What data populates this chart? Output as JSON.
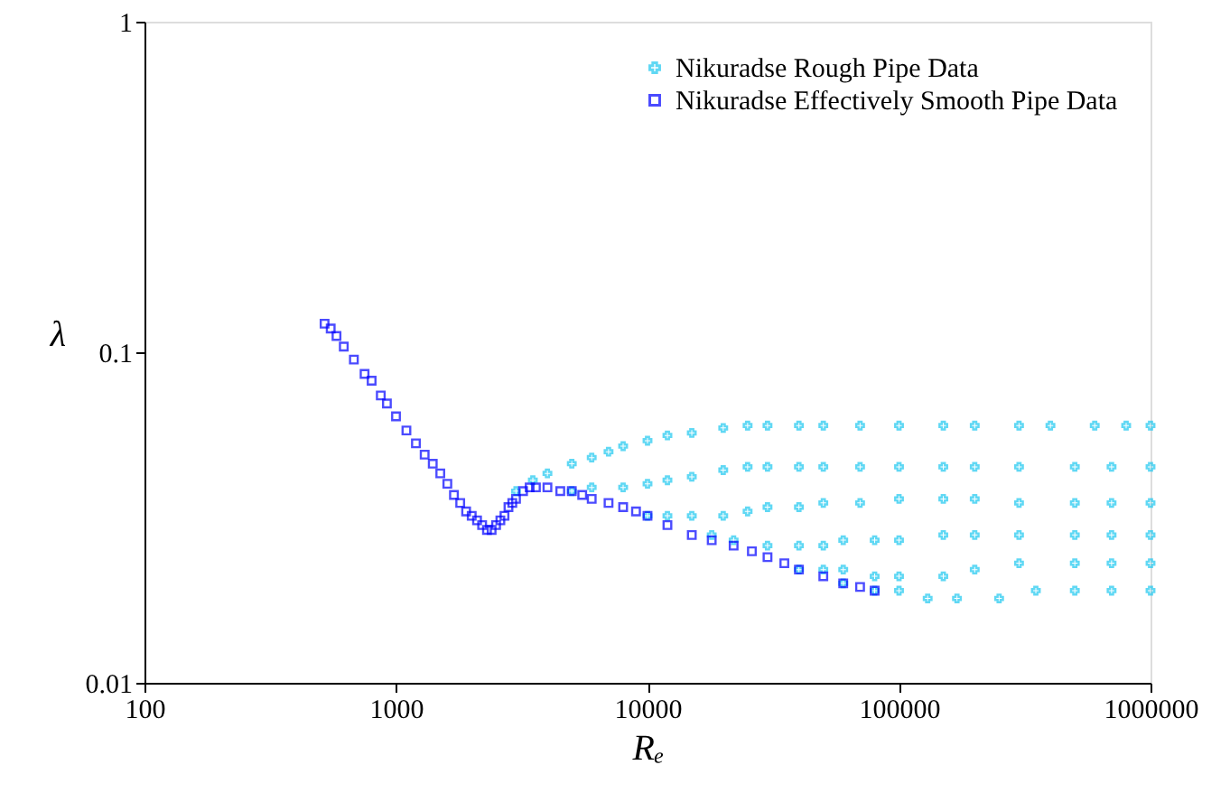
{
  "chart_data": {
    "type": "scatter",
    "xlabel": "Rₑ",
    "ylabel": "λ",
    "log": "xy",
    "xlim": [
      100,
      1000000
    ],
    "ylim": [
      0.01,
      1
    ],
    "xticks": [
      100,
      1000,
      10000,
      100000,
      1000000
    ],
    "yticks": [
      0.01,
      0.1,
      1
    ],
    "grid": false,
    "legend": "top right",
    "series": [
      {
        "name": "Nikuradse Rough Pipe Data",
        "color": "#1ec8f0",
        "marker": "cross",
        "x": [
          3000,
          3500,
          4000,
          5000,
          6000,
          7000,
          8000,
          10000,
          12000,
          15000,
          20000,
          25000,
          30000,
          40000,
          50000,
          70000,
          100000,
          150000,
          200000,
          300000,
          400000,
          600000,
          800000,
          1000000,
          5000,
          6000,
          8000,
          10000,
          12000,
          15000,
          20000,
          25000,
          30000,
          40000,
          50000,
          70000,
          100000,
          150000,
          200000,
          300000,
          500000,
          700000,
          1000000,
          10000,
          12000,
          15000,
          20000,
          25000,
          30000,
          40000,
          50000,
          70000,
          100000,
          150000,
          200000,
          300000,
          500000,
          700000,
          1000000,
          18000,
          22000,
          30000,
          40000,
          50000,
          60000,
          80000,
          100000,
          150000,
          200000,
          300000,
          500000,
          700000,
          1000000,
          40000,
          50000,
          60000,
          80000,
          100000,
          150000,
          200000,
          300000,
          500000,
          700000,
          1000000,
          60000,
          80000,
          100000,
          130000,
          170000,
          250000,
          350000,
          500000,
          700000,
          1000000
        ],
        "values": [
          0.038,
          0.041,
          0.043,
          0.046,
          0.048,
          0.05,
          0.052,
          0.054,
          0.056,
          0.057,
          0.059,
          0.06,
          0.06,
          0.06,
          0.06,
          0.06,
          0.06,
          0.06,
          0.06,
          0.06,
          0.06,
          0.06,
          0.06,
          0.06,
          0.038,
          0.039,
          0.039,
          0.04,
          0.041,
          0.042,
          0.044,
          0.045,
          0.045,
          0.045,
          0.045,
          0.045,
          0.045,
          0.045,
          0.045,
          0.045,
          0.045,
          0.045,
          0.045,
          0.032,
          0.032,
          0.032,
          0.032,
          0.033,
          0.034,
          0.034,
          0.035,
          0.035,
          0.036,
          0.036,
          0.036,
          0.035,
          0.035,
          0.035,
          0.035,
          0.028,
          0.027,
          0.026,
          0.026,
          0.026,
          0.027,
          0.027,
          0.027,
          0.028,
          0.028,
          0.028,
          0.028,
          0.028,
          0.028,
          0.022,
          0.022,
          0.022,
          0.021,
          0.021,
          0.021,
          0.022,
          0.023,
          0.023,
          0.023,
          0.023,
          0.02,
          0.019,
          0.019,
          0.018,
          0.018,
          0.018,
          0.019,
          0.019,
          0.019,
          0.019
        ]
      },
      {
        "name": "Nikuradse Effectively Smooth Pipe Data",
        "color": "#0000ff",
        "marker": "square",
        "x": [
          520,
          550,
          580,
          620,
          680,
          750,
          800,
          870,
          920,
          1000,
          1100,
          1200,
          1300,
          1400,
          1500,
          1600,
          1700,
          1800,
          1900,
          2000,
          2100,
          2200,
          2300,
          2400,
          2500,
          2600,
          2700,
          2800,
          2900,
          3000,
          3200,
          3400,
          3600,
          4000,
          4500,
          5000,
          5500,
          6000,
          7000,
          8000,
          9000,
          10000,
          12000,
          15000,
          18000,
          22000,
          26000,
          30000,
          35000,
          40000,
          50000,
          60000,
          70000,
          80000
        ],
        "values": [
          0.122,
          0.118,
          0.112,
          0.104,
          0.095,
          0.086,
          0.082,
          0.074,
          0.07,
          0.064,
          0.058,
          0.053,
          0.049,
          0.046,
          0.043,
          0.04,
          0.037,
          0.035,
          0.033,
          0.032,
          0.031,
          0.03,
          0.029,
          0.029,
          0.03,
          0.031,
          0.032,
          0.034,
          0.035,
          0.036,
          0.038,
          0.039,
          0.039,
          0.039,
          0.038,
          0.038,
          0.037,
          0.036,
          0.035,
          0.034,
          0.033,
          0.032,
          0.03,
          0.028,
          0.027,
          0.026,
          0.025,
          0.024,
          0.023,
          0.022,
          0.021,
          0.02,
          0.0195,
          0.019
        ]
      }
    ]
  }
}
